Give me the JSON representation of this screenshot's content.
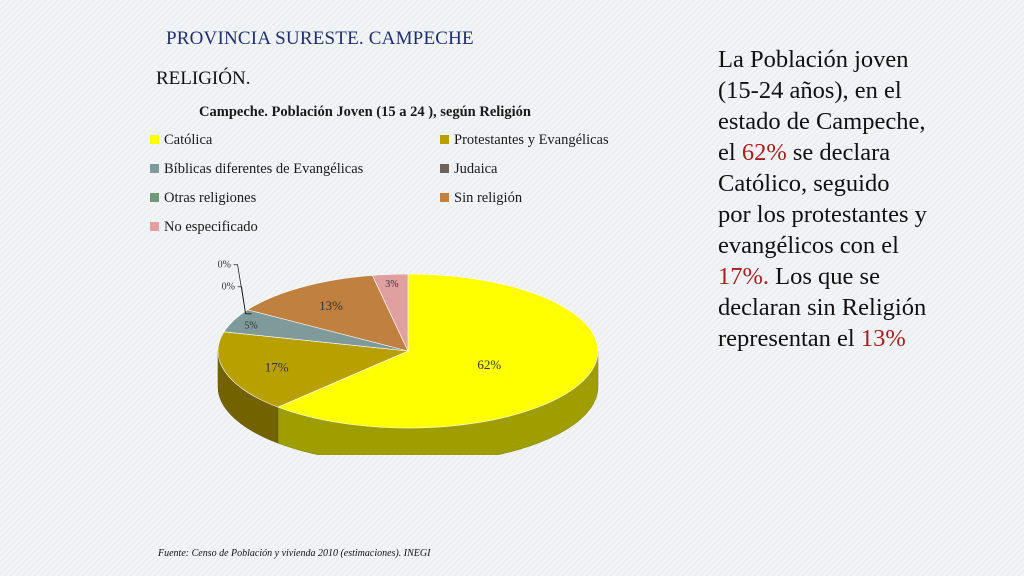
{
  "slide": {
    "title": "PROVINCIA SURESTE. CAMPECHE",
    "section": "RELIGIÓN.",
    "source": "Fuente: Censo de Población y vivienda 2010 (estimaciones). INEGI"
  },
  "side_text": {
    "p1": "La Población joven (15-24 años), en el estado de Campeche, el ",
    "h1": "62%",
    "p2": " se declara Católico, seguido por los protestantes y evangélicos con el ",
    "h2": "17%.",
    "p3": " Los que se declaran sin Religión representan el ",
    "h3": "13%"
  },
  "chart_data": {
    "type": "pie",
    "style": "3d",
    "title": "Campeche. Población Joven (15 a 24 ), según Religión",
    "legend_position": "top",
    "categories": [
      "Católica",
      "Protestantes y Evangélicas",
      "Bíblicas diferentes de Evangélicas",
      "Judaica",
      "Otras religiones",
      "Sin religión",
      "No especificado"
    ],
    "values": [
      62,
      17,
      5,
      0,
      0,
      13,
      3
    ],
    "labels": [
      "62%",
      "17%",
      "5%",
      "0%",
      "0%",
      "13%",
      "3%"
    ],
    "colors": [
      "#ffff00",
      "#b8a000",
      "#7f9a9a",
      "#6e625a",
      "#6f9a7a",
      "#c08040",
      "#e0a0a0"
    ]
  }
}
